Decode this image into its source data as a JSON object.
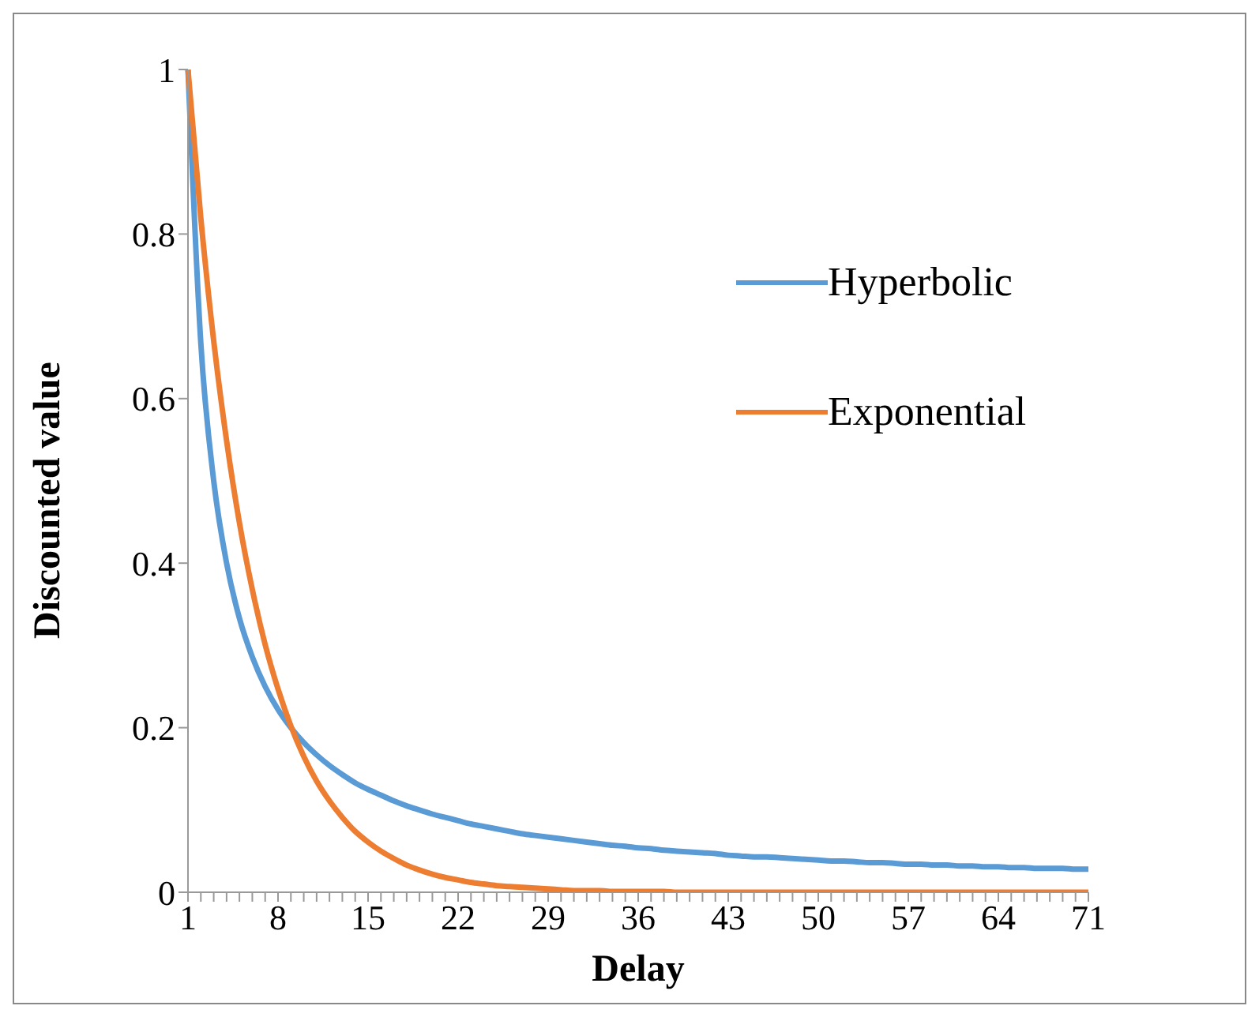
{
  "chart_data": {
    "type": "line",
    "xlabel": "Delay",
    "ylabel": "Discounted value",
    "categories": [
      "1",
      null,
      null,
      null,
      null,
      null,
      null,
      "8",
      null,
      null,
      null,
      null,
      null,
      null,
      "15",
      null,
      null,
      null,
      null,
      null,
      null,
      "22",
      null,
      null,
      null,
      null,
      null,
      null,
      "29",
      null,
      null,
      null,
      null,
      null,
      null,
      "36",
      null,
      null,
      null,
      null,
      null,
      null,
      "43",
      null,
      null,
      null,
      null,
      null,
      null,
      "50",
      null,
      null,
      null,
      null,
      null,
      null,
      "57",
      null,
      null,
      null,
      null,
      null,
      null,
      "64",
      null,
      null,
      null,
      null,
      null,
      null,
      "71"
    ],
    "series": [
      {
        "name": "Hyperbolic",
        "color": "#5b9bd5",
        "values": [
          1,
          0.667,
          0.5,
          0.4,
          0.333,
          0.286,
          0.25,
          0.222,
          0.2,
          0.182,
          0.167,
          0.154,
          0.143,
          0.133,
          0.125,
          0.118,
          0.111,
          0.105,
          0.1,
          0.095,
          0.091,
          0.087,
          0.083,
          0.08,
          0.077,
          0.074,
          0.071,
          0.069,
          0.067,
          0.065,
          0.063,
          0.061,
          0.059,
          0.057,
          0.056,
          0.054,
          0.053,
          0.051,
          0.05,
          0.049,
          0.048,
          0.047,
          0.045,
          0.044,
          0.043,
          0.043,
          0.042,
          0.041,
          0.04,
          0.039,
          0.038,
          0.038,
          0.037,
          0.036,
          0.036,
          0.035,
          0.034,
          0.034,
          0.033,
          0.033,
          0.032,
          0.032,
          0.031,
          0.031,
          0.03,
          0.03,
          0.029,
          0.029,
          0.029,
          0.028,
          0.028
        ]
      },
      {
        "name": "Exponential",
        "color": "#ed7d31",
        "values": [
          1,
          0.819,
          0.67,
          0.549,
          0.449,
          0.368,
          0.301,
          0.247,
          0.202,
          0.165,
          0.135,
          0.111,
          0.091,
          0.074,
          0.061,
          0.05,
          0.041,
          0.033,
          0.027,
          0.022,
          0.018,
          0.015,
          0.012,
          0.01,
          0.008,
          0.007,
          0.006,
          0.005,
          0.004,
          0.003,
          0.002,
          0.002,
          0.002,
          0.001,
          0.001,
          0.001,
          0.001,
          0.001,
          0,
          0,
          0,
          0,
          0,
          0,
          0,
          0,
          0,
          0,
          0,
          0,
          0,
          0,
          0,
          0,
          0,
          0,
          0,
          0,
          0,
          0,
          0,
          0,
          0,
          0,
          0,
          0,
          0,
          0,
          0,
          0,
          0
        ]
      }
    ],
    "ylim": [
      0,
      1
    ],
    "yticks": [
      0,
      0.2,
      0.4,
      0.6,
      0.8,
      1
    ],
    "grid": false,
    "legend": "top right",
    "marker": "none",
    "line_style": "solid"
  }
}
